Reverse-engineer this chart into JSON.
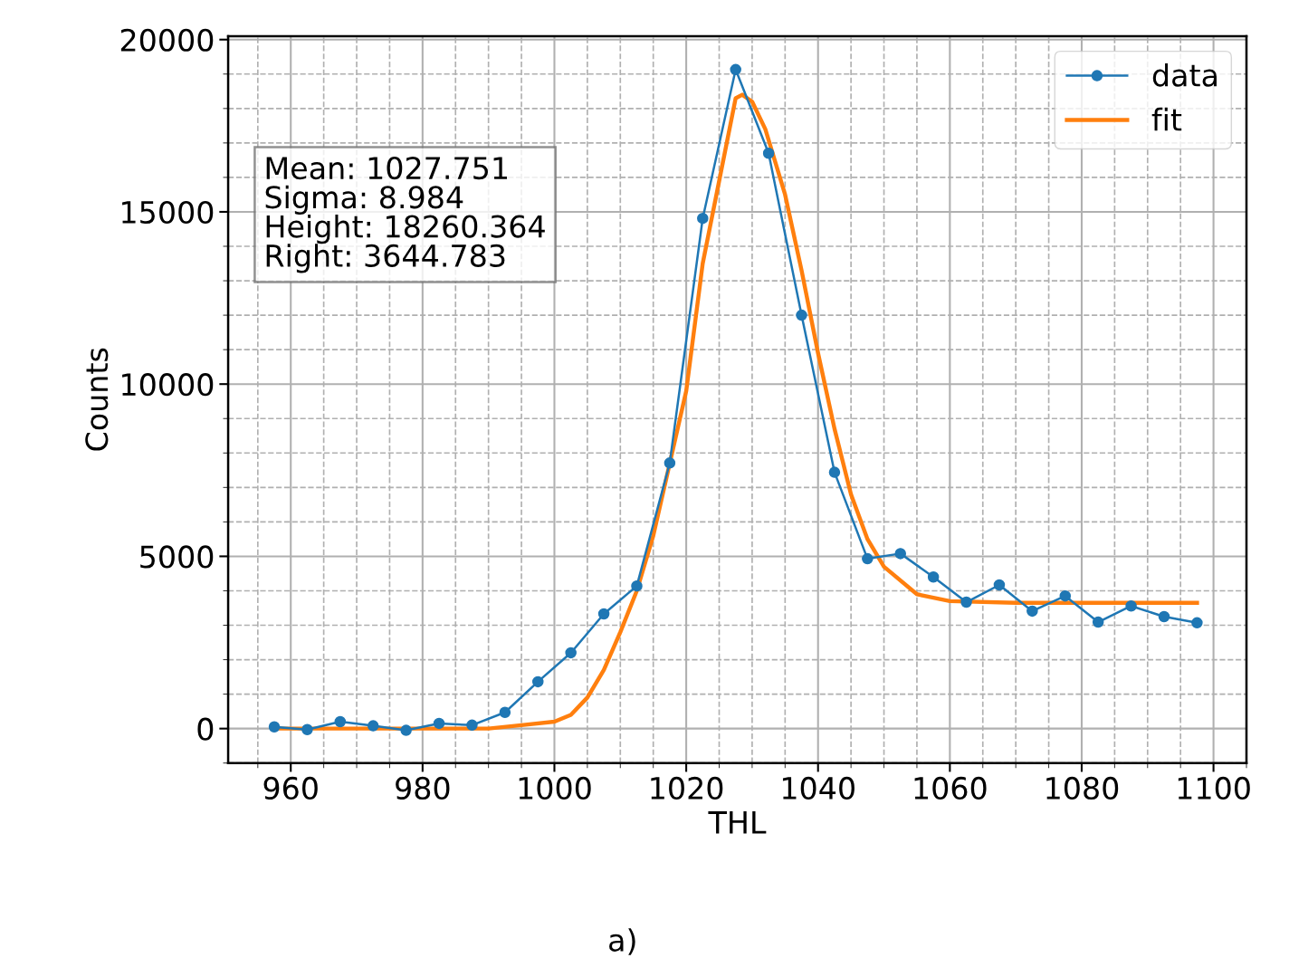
{
  "chart_data": {
    "type": "line",
    "xlabel": "THL",
    "ylabel": "Counts",
    "xlim": [
      950.5,
      1105
    ],
    "ylim": [
      -1000,
      20100
    ],
    "xticks": [
      960,
      980,
      1000,
      1020,
      1040,
      1060,
      1080,
      1100
    ],
    "yticks": [
      0,
      5000,
      10000,
      15000,
      20000
    ],
    "grid": true,
    "legend": "top right",
    "series": [
      {
        "name": "data",
        "color": "#1f77b4",
        "marker": "circle",
        "x": [
          957.5,
          962.5,
          967.5,
          972.5,
          977.5,
          982.5,
          987.5,
          992.5,
          997.5,
          1002.5,
          1007.5,
          1012.5,
          1017.5,
          1022.5,
          1027.5,
          1032.5,
          1037.5,
          1042.5,
          1047.5,
          1052.5,
          1057.5,
          1062.5,
          1067.5,
          1072.5,
          1077.5,
          1082.5,
          1087.5,
          1092.5,
          1097.5
        ],
        "values": [
          50,
          -30,
          200,
          80,
          -50,
          150,
          100,
          470,
          1360,
          2200,
          3330,
          4140,
          7710,
          14810,
          19130,
          16700,
          12000,
          7440,
          4930,
          5080,
          4400,
          3670,
          4170,
          3410,
          3850,
          3090,
          3560,
          3250,
          3070
        ]
      },
      {
        "name": "fit",
        "color": "#ff7f0e",
        "marker": "none",
        "x": [
          957.5,
          970,
          980,
          990,
          995,
          1000,
          1002.5,
          1005,
          1007.5,
          1010,
          1012.5,
          1015,
          1017.5,
          1020,
          1022.5,
          1025,
          1027.5,
          1028.5,
          1030,
          1032,
          1035,
          1037.5,
          1040,
          1042.5,
          1045,
          1047.5,
          1050,
          1055,
          1060,
          1070,
          1080,
          1097.5
        ],
        "values": [
          0,
          0,
          0,
          0,
          100,
          200,
          400,
          900,
          1700,
          2800,
          4000,
          5600,
          7700,
          9800,
          13500,
          15900,
          18300,
          18400,
          18200,
          17400,
          15500,
          13300,
          10900,
          8700,
          6800,
          5500,
          4700,
          3900,
          3700,
          3650,
          3650,
          3650
        ]
      }
    ],
    "annotations": [
      "Mean: 1027.751\nSigma: 8.984\nHeight: 18260.364\nRight: 3644.783",
      "a)"
    ]
  }
}
